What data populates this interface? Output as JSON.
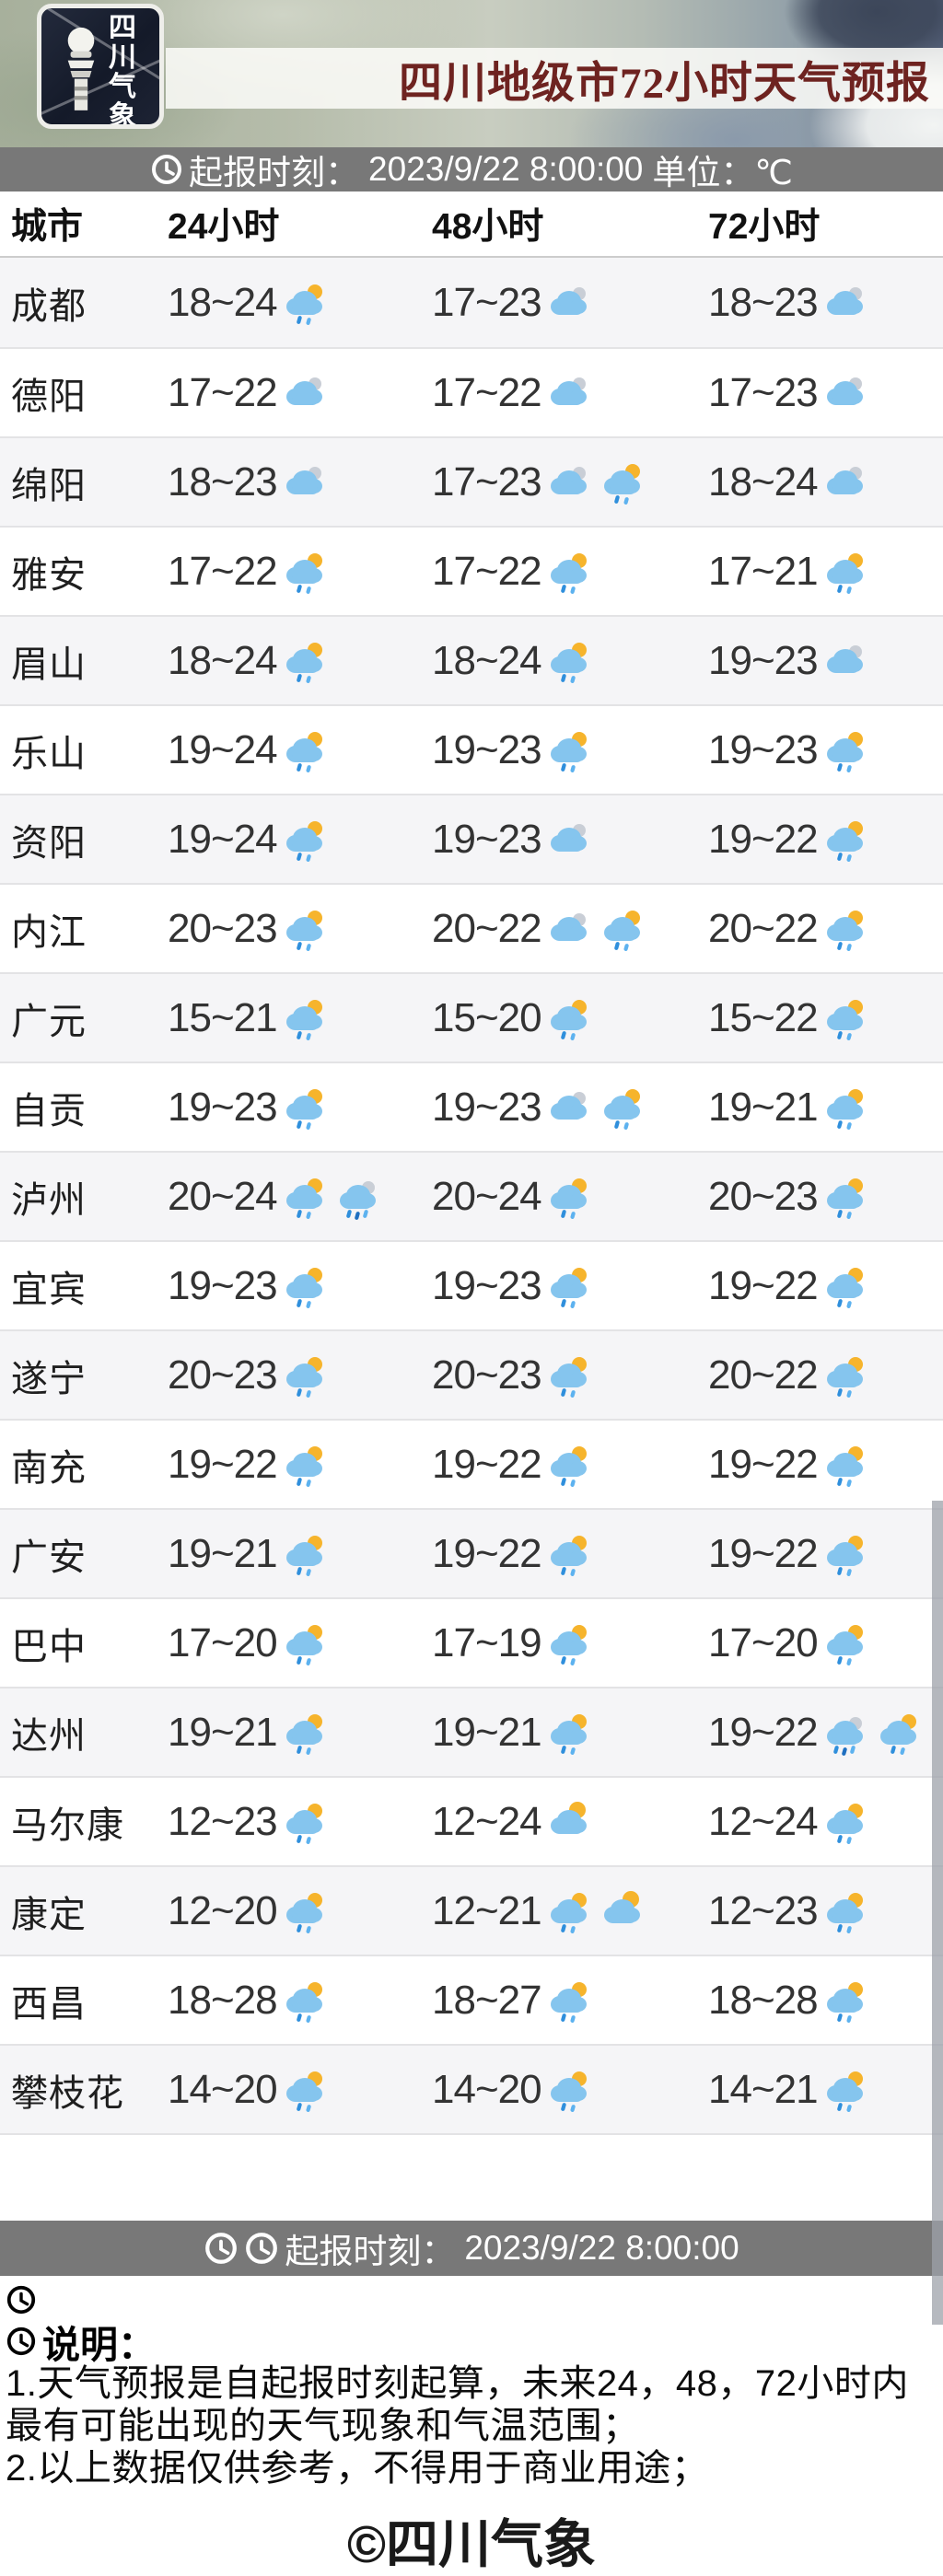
{
  "header": {
    "title": "四川地级市72小时天气预报",
    "logo": {
      "line1": "四川",
      "line2": "气象"
    }
  },
  "init_bar": {
    "label": "起报时刻：",
    "datetime": "2023/9/22 8:00:00",
    "unit": "单位：℃"
  },
  "table": {
    "columns": [
      "城市",
      "24小时",
      "48小时",
      "72小时"
    ],
    "rows": [
      {
        "city": "成都",
        "h24": {
          "temp": "18~24",
          "icons": [
            "shower"
          ]
        },
        "h48": {
          "temp": "17~23",
          "icons": [
            "cloudy"
          ]
        },
        "h72": {
          "temp": "18~23",
          "icons": [
            "cloudy"
          ]
        }
      },
      {
        "city": "德阳",
        "h24": {
          "temp": "17~22",
          "icons": [
            "cloudy"
          ]
        },
        "h48": {
          "temp": "17~22",
          "icons": [
            "cloudy"
          ]
        },
        "h72": {
          "temp": "17~23",
          "icons": [
            "cloudy"
          ]
        }
      },
      {
        "city": "绵阳",
        "h24": {
          "temp": "18~23",
          "icons": [
            "cloudy"
          ]
        },
        "h48": {
          "temp": "17~23",
          "icons": [
            "cloudy",
            "shower"
          ]
        },
        "h72": {
          "temp": "18~24",
          "icons": [
            "cloudy"
          ]
        }
      },
      {
        "city": "雅安",
        "h24": {
          "temp": "17~22",
          "icons": [
            "shower"
          ]
        },
        "h48": {
          "temp": "17~22",
          "icons": [
            "shower"
          ]
        },
        "h72": {
          "temp": "17~21",
          "icons": [
            "shower"
          ]
        }
      },
      {
        "city": "眉山",
        "h24": {
          "temp": "18~24",
          "icons": [
            "shower"
          ]
        },
        "h48": {
          "temp": "18~24",
          "icons": [
            "shower"
          ]
        },
        "h72": {
          "temp": "19~23",
          "icons": [
            "cloudy"
          ]
        }
      },
      {
        "city": "乐山",
        "h24": {
          "temp": "19~24",
          "icons": [
            "shower"
          ]
        },
        "h48": {
          "temp": "19~23",
          "icons": [
            "shower"
          ]
        },
        "h72": {
          "temp": "19~23",
          "icons": [
            "shower"
          ]
        }
      },
      {
        "city": "资阳",
        "h24": {
          "temp": "19~24",
          "icons": [
            "shower"
          ]
        },
        "h48": {
          "temp": "19~23",
          "icons": [
            "cloudy"
          ]
        },
        "h72": {
          "temp": "19~22",
          "icons": [
            "shower"
          ]
        }
      },
      {
        "city": "内江",
        "h24": {
          "temp": "20~23",
          "icons": [
            "shower"
          ]
        },
        "h48": {
          "temp": "20~22",
          "icons": [
            "cloudy",
            "shower"
          ]
        },
        "h72": {
          "temp": "20~22",
          "icons": [
            "shower"
          ]
        }
      },
      {
        "city": "广元",
        "h24": {
          "temp": "15~21",
          "icons": [
            "shower"
          ]
        },
        "h48": {
          "temp": "15~20",
          "icons": [
            "shower"
          ]
        },
        "h72": {
          "temp": "15~22",
          "icons": [
            "shower"
          ]
        }
      },
      {
        "city": "自贡",
        "h24": {
          "temp": "19~23",
          "icons": [
            "shower"
          ]
        },
        "h48": {
          "temp": "19~23",
          "icons": [
            "cloudy",
            "shower"
          ]
        },
        "h72": {
          "temp": "19~21",
          "icons": [
            "shower"
          ]
        }
      },
      {
        "city": "泸州",
        "h24": {
          "temp": "20~24",
          "icons": [
            "shower",
            "rain"
          ]
        },
        "h48": {
          "temp": "20~24",
          "icons": [
            "shower"
          ]
        },
        "h72": {
          "temp": "20~23",
          "icons": [
            "shower"
          ]
        }
      },
      {
        "city": "宜宾",
        "h24": {
          "temp": "19~23",
          "icons": [
            "shower"
          ]
        },
        "h48": {
          "temp": "19~23",
          "icons": [
            "shower"
          ]
        },
        "h72": {
          "temp": "19~22",
          "icons": [
            "shower"
          ]
        }
      },
      {
        "city": "遂宁",
        "h24": {
          "temp": "20~23",
          "icons": [
            "shower"
          ]
        },
        "h48": {
          "temp": "20~23",
          "icons": [
            "shower"
          ]
        },
        "h72": {
          "temp": "20~22",
          "icons": [
            "shower"
          ]
        }
      },
      {
        "city": "南充",
        "h24": {
          "temp": "19~22",
          "icons": [
            "shower"
          ]
        },
        "h48": {
          "temp": "19~22",
          "icons": [
            "shower"
          ]
        },
        "h72": {
          "temp": "19~22",
          "icons": [
            "shower"
          ]
        }
      },
      {
        "city": "广安",
        "h24": {
          "temp": "19~21",
          "icons": [
            "shower"
          ]
        },
        "h48": {
          "temp": "19~22",
          "icons": [
            "shower"
          ]
        },
        "h72": {
          "temp": "19~22",
          "icons": [
            "shower"
          ]
        }
      },
      {
        "city": "巴中",
        "h24": {
          "temp": "17~20",
          "icons": [
            "shower"
          ]
        },
        "h48": {
          "temp": "17~19",
          "icons": [
            "shower"
          ]
        },
        "h72": {
          "temp": "17~20",
          "icons": [
            "shower"
          ]
        }
      },
      {
        "city": "达州",
        "h24": {
          "temp": "19~21",
          "icons": [
            "shower"
          ]
        },
        "h48": {
          "temp": "19~21",
          "icons": [
            "shower"
          ]
        },
        "h72": {
          "temp": "19~22",
          "icons": [
            "rain",
            "shower"
          ]
        }
      },
      {
        "city": "马尔康",
        "h24": {
          "temp": "12~23",
          "icons": [
            "shower"
          ]
        },
        "h48": {
          "temp": "12~24",
          "icons": [
            "sun-cloud"
          ]
        },
        "h72": {
          "temp": "12~24",
          "icons": [
            "shower"
          ]
        }
      },
      {
        "city": "康定",
        "h24": {
          "temp": "12~20",
          "icons": [
            "shower"
          ]
        },
        "h48": {
          "temp": "12~21",
          "icons": [
            "shower",
            "sun-cloud"
          ]
        },
        "h72": {
          "temp": "12~23",
          "icons": [
            "shower"
          ]
        }
      },
      {
        "city": "西昌",
        "h24": {
          "temp": "18~28",
          "icons": [
            "shower"
          ]
        },
        "h48": {
          "temp": "18~27",
          "icons": [
            "shower"
          ]
        },
        "h72": {
          "temp": "18~28",
          "icons": [
            "shower"
          ]
        }
      },
      {
        "city": "攀枝花",
        "h24": {
          "temp": "14~20",
          "icons": [
            "shower"
          ]
        },
        "h48": {
          "temp": "14~20",
          "icons": [
            "shower"
          ]
        },
        "h72": {
          "temp": "14~21",
          "icons": [
            "shower"
          ]
        }
      }
    ]
  },
  "footer": {
    "bar_label": "起报时刻：",
    "bar_datetime": "2023/9/22 8:00:00",
    "notes_title": "说明：",
    "notes": [
      "1.天气预报是自起报时刻起算，未来24，48，72小时内最有可能出现的天气现象和气温范围；",
      "2.以上数据仅供参考，不得用于商业用途；"
    ],
    "copyright": "©四川气象"
  },
  "colors": {
    "title_red": "#6e2320",
    "bar_gray": "#787878",
    "alt_row": "#f5f5f7",
    "cloud_blue": "#85c5ee",
    "sun_yellow": "#f6b42c",
    "tuft_gray": "#c9ced6",
    "drop_blue": "#2f8fdc"
  }
}
